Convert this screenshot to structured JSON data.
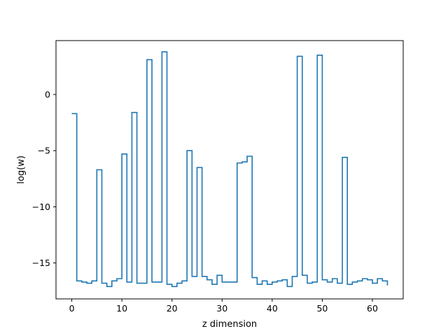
{
  "chart_data": {
    "type": "line",
    "drawstyle": "steps-post",
    "xlabel": "z dimension",
    "ylabel": "log(w)",
    "xlim": [
      -3.15,
      66.15
    ],
    "ylim": [
      -18.2,
      4.8
    ],
    "xticks": [
      0,
      10,
      20,
      30,
      40,
      50,
      60
    ],
    "yticks": [
      -15,
      -10,
      -5,
      0
    ],
    "grid": false,
    "series": [
      {
        "name": "",
        "color": "#1f77b4",
        "x": [
          0,
          1,
          2,
          3,
          4,
          5,
          6,
          7,
          8,
          9,
          10,
          11,
          12,
          13,
          14,
          15,
          16,
          17,
          18,
          19,
          20,
          21,
          22,
          23,
          24,
          25,
          26,
          27,
          28,
          29,
          30,
          31,
          32,
          33,
          34,
          35,
          36,
          37,
          38,
          39,
          40,
          41,
          42,
          43,
          44,
          45,
          46,
          47,
          48,
          49,
          50,
          51,
          52,
          53,
          54,
          55,
          56,
          57,
          58,
          59,
          60,
          61,
          62,
          63
        ],
        "values": [
          -1.7,
          -16.6,
          -16.7,
          -16.8,
          -16.6,
          -6.7,
          -16.8,
          -17.1,
          -16.6,
          -16.4,
          -5.3,
          -16.7,
          -1.6,
          -16.8,
          -16.8,
          3.1,
          -16.7,
          -16.7,
          3.8,
          -16.9,
          -17.1,
          -16.8,
          -16.6,
          -5.0,
          -16.2,
          -6.5,
          -16.2,
          -16.5,
          -16.9,
          -16.1,
          -16.7,
          -16.7,
          -16.7,
          -6.1,
          -6.0,
          -5.5,
          -16.3,
          -16.9,
          -16.6,
          -16.9,
          -16.7,
          -16.6,
          -16.5,
          -17.1,
          -16.2,
          3.4,
          -16.1,
          -16.8,
          -16.7,
          3.5,
          -16.5,
          -16.7,
          -16.4,
          -16.8,
          -5.6,
          -16.9,
          -16.7,
          -16.6,
          -16.4,
          -16.5,
          -16.8,
          -16.4,
          -16.6,
          -17.0
        ]
      }
    ]
  }
}
